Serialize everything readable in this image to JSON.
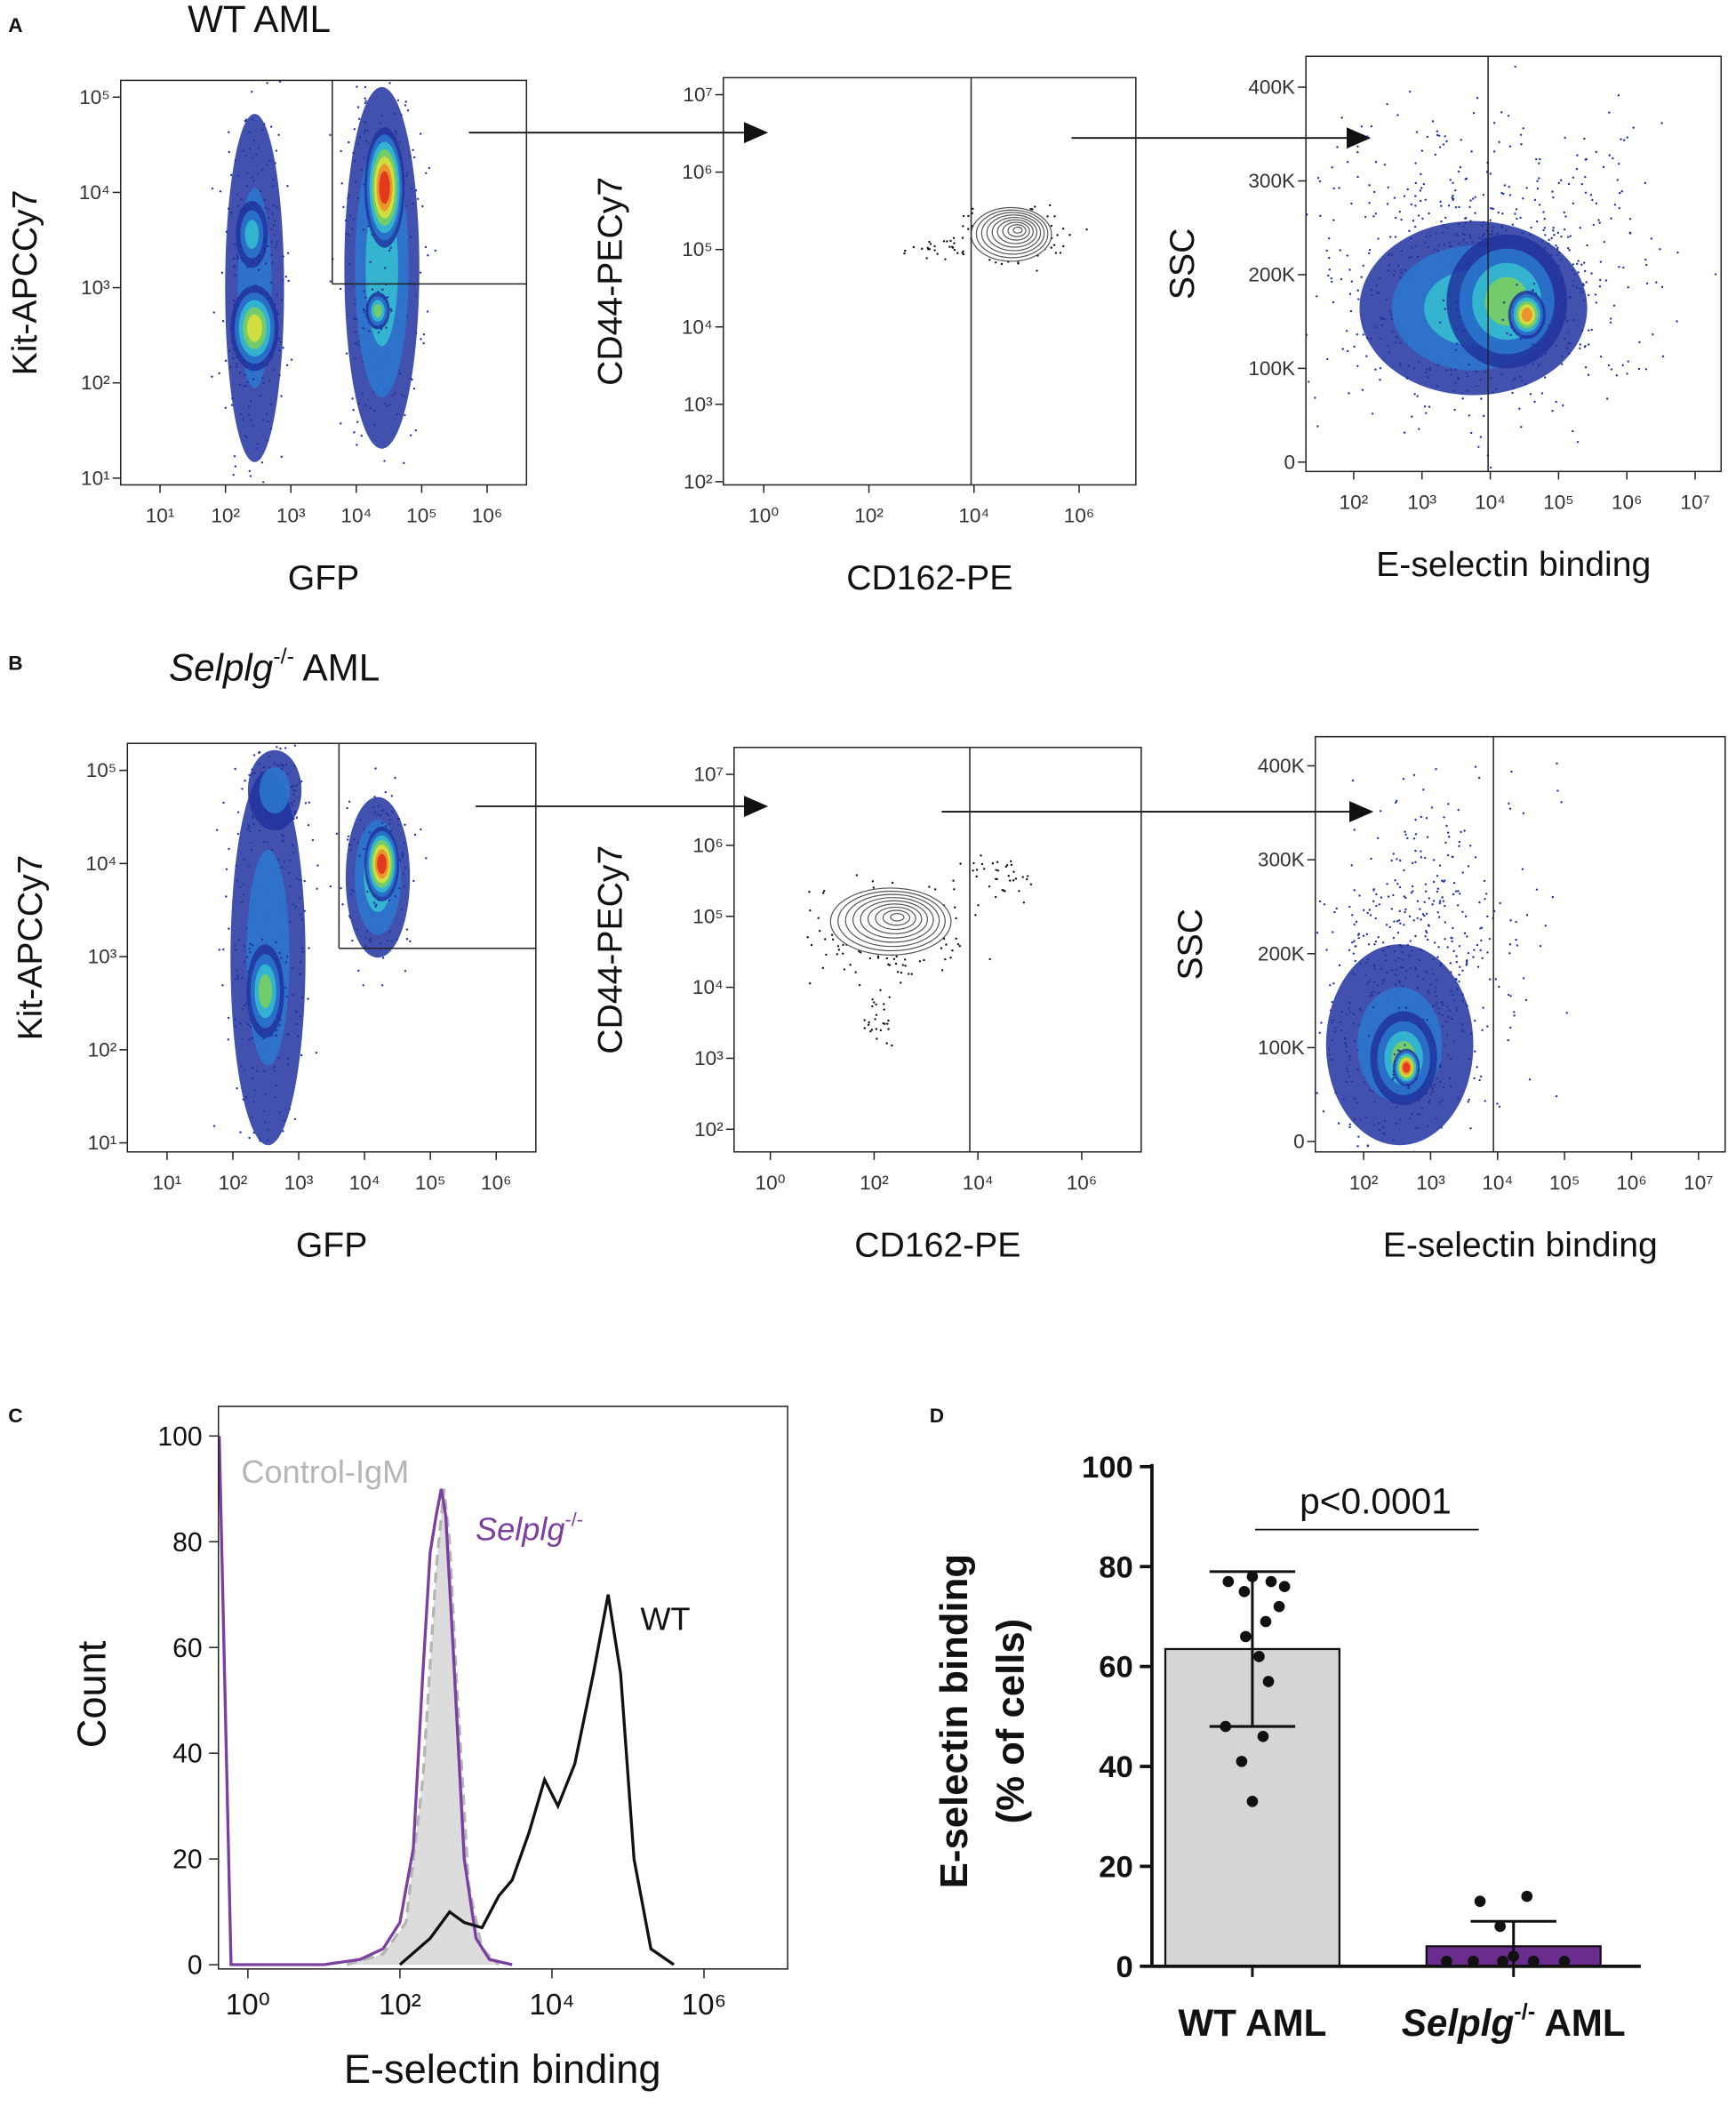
{
  "panels": [
    {
      "letter": "A",
      "title": "WT AML"
    },
    {
      "letter": "B",
      "title": {
        "italic": "Selplg",
        "sup": "-/-",
        "text": " AML"
      }
    },
    {
      "letter": "C"
    },
    {
      "letter": "D"
    }
  ],
  "chart_data": [
    {
      "type": "density",
      "xlabel": "GFP",
      "ylabel": "Kit-APCCy7",
      "xlog": true,
      "ylog": true,
      "xlim": [
        2.5,
        4000000
      ],
      "ylim": [
        8.5,
        150000
      ],
      "xticks": [
        {
          "value": 10,
          "label": "10¹"
        },
        {
          "value": 100,
          "label": "10²"
        },
        {
          "value": 1000,
          "label": "10³"
        },
        {
          "value": 10000,
          "label": "10⁴"
        },
        {
          "value": 100000,
          "label": "10⁵"
        },
        {
          "value": 1000000,
          "label": "10⁶"
        }
      ],
      "yticks": [
        {
          "value": 10,
          "label": "10¹"
        },
        {
          "value": 100,
          "label": "10²"
        },
        {
          "value": 1000,
          "label": "10³"
        },
        {
          "value": 10000,
          "label": "10⁴"
        },
        {
          "value": 100000,
          "label": "10⁵"
        }
      ]
    },
    {
      "type": "contour",
      "xlabel": "CD162-PE",
      "ylabel": "CD44-PECy7",
      "xlog": true,
      "ylog": true,
      "xlim": [
        0.17,
        12000000
      ],
      "ylim": [
        91,
        16600000
      ],
      "xticks": [
        {
          "value": 1,
          "label": "10⁰"
        },
        {
          "value": 100,
          "label": "10²"
        },
        {
          "value": 10000,
          "label": "10⁴"
        },
        {
          "value": 1000000,
          "label": "10⁶"
        }
      ],
      "yticks": [
        {
          "value": 100,
          "label": "10²"
        },
        {
          "value": 1000,
          "label": "10³"
        },
        {
          "value": 10000,
          "label": "10⁴"
        },
        {
          "value": 100000,
          "label": "10⁵"
        },
        {
          "value": 1000000,
          "label": "10⁶"
        },
        {
          "value": 10000000,
          "label": "10⁷"
        }
      ]
    },
    {
      "type": "density",
      "xlabel": "E-selectin binding",
      "ylabel": "SSC",
      "xlog": true,
      "ylog": false,
      "xlim": [
        20,
        24000000
      ],
      "ylim": [
        -10000,
        433000
      ],
      "xticks": [
        {
          "value": 100,
          "label": "10²"
        },
        {
          "value": 1000,
          "label": "10³"
        },
        {
          "value": 10000,
          "label": "10⁴"
        },
        {
          "value": 100000,
          "label": "10⁵"
        },
        {
          "value": 1000000,
          "label": "10⁶"
        },
        {
          "value": 10000000,
          "label": "10⁷"
        }
      ],
      "yticks": [
        0,
        {
          "value": 100000,
          "label": "100K"
        },
        {
          "value": 200000,
          "label": "200K"
        },
        {
          "value": 300000,
          "label": "300K"
        },
        {
          "value": 400000,
          "label": "400K"
        }
      ]
    },
    {
      "type": "density",
      "xlabel": "GFP",
      "ylabel": "Kit-APCCy7",
      "xlog": true,
      "ylog": true,
      "xlim": [
        2.5,
        4000000
      ],
      "ylim": [
        8,
        195000
      ],
      "xticks": [
        {
          "value": 10,
          "label": "10¹"
        },
        {
          "value": 100,
          "label": "10²"
        },
        {
          "value": 1000,
          "label": "10³"
        },
        {
          "value": 10000,
          "label": "10⁴"
        },
        {
          "value": 100000,
          "label": "10⁵"
        },
        {
          "value": 1000000,
          "label": "10⁶"
        }
      ],
      "yticks": [
        {
          "value": 10,
          "label": "10¹"
        },
        {
          "value": 100,
          "label": "10²"
        },
        {
          "value": 1000,
          "label": "10³"
        },
        {
          "value": 10000,
          "label": "10⁴"
        },
        {
          "value": 100000,
          "label": "10⁵"
        }
      ]
    },
    {
      "type": "contour",
      "xlabel": "CD162-PE",
      "ylabel": "CD44-PECy7",
      "xlog": true,
      "ylog": true,
      "xlim": [
        0.2,
        14000000
      ],
      "ylim": [
        48,
        24000000
      ],
      "xticks": [
        {
          "value": 1,
          "label": "10⁰"
        },
        {
          "value": 100,
          "label": "10²"
        },
        {
          "value": 10000,
          "label": "10⁴"
        },
        {
          "value": 1000000,
          "label": "10⁶"
        }
      ],
      "yticks": [
        {
          "value": 100,
          "label": "10²"
        },
        {
          "value": 1000,
          "label": "10³"
        },
        {
          "value": 10000,
          "label": "10⁴"
        },
        {
          "value": 100000,
          "label": "10⁵"
        },
        {
          "value": 1000000,
          "label": "10⁶"
        },
        {
          "value": 10000000,
          "label": "10⁷"
        }
      ]
    },
    {
      "type": "density",
      "xlabel": "E-selectin binding",
      "ylabel": "SSC",
      "xlog": true,
      "ylog": false,
      "xlim": [
        19,
        25000000
      ],
      "ylim": [
        -11000,
        431000
      ],
      "xticks": [
        {
          "value": 100,
          "label": "10²"
        },
        {
          "value": 1000,
          "label": "10³"
        },
        {
          "value": 10000,
          "label": "10⁴"
        },
        {
          "value": 100000,
          "label": "10⁵"
        },
        {
          "value": 1000000,
          "label": "10⁶"
        },
        {
          "value": 10000000,
          "label": "10⁷"
        }
      ],
      "yticks": [
        0,
        {
          "value": 100000,
          "label": "100K"
        },
        {
          "value": 200000,
          "label": "200K"
        },
        {
          "value": 300000,
          "label": "300K"
        },
        {
          "value": 400000,
          "label": "400K"
        }
      ]
    },
    {
      "type": "line",
      "xlabel": "E-selectin binding",
      "ylabel": "Count",
      "xlog": true,
      "xlim": [
        0.41,
        12600000
      ],
      "ylim": [
        -0.8,
        105.6
      ],
      "xticks": [
        {
          "value": 1,
          "label": "10⁰"
        },
        {
          "value": 100,
          "label": "10²"
        },
        {
          "value": 10000,
          "label": "10⁴"
        },
        {
          "value": 1000000,
          "label": "10⁶"
        }
      ],
      "yticks": [
        0,
        20,
        40,
        60,
        80,
        100
      ],
      "series": [
        {
          "name": "Control-IgM",
          "color": "#b5b5b5",
          "fill": "#dcdcdc",
          "dashed": true,
          "x": [
            20,
            60,
            120,
            200,
            300,
            380,
            450,
            550,
            800,
            1200,
            2000
          ],
          "values": [
            0,
            2,
            8,
            35,
            75,
            90,
            80,
            55,
            15,
            3,
            0
          ]
        },
        {
          "name": {
            "italic": "Selplg",
            "sup": "-/-"
          },
          "color": "#7b3fa0",
          "x": [
            0.42,
            0.6,
            10,
            30,
            60,
            100,
            150,
            200,
            250,
            300,
            350,
            400,
            500,
            700,
            1000,
            1500,
            3000
          ],
          "values": [
            100,
            0,
            0,
            1,
            3,
            8,
            22,
            55,
            78,
            85,
            90,
            85,
            60,
            20,
            5,
            1,
            0
          ]
        },
        {
          "name": "WT",
          "color": "#111111",
          "x": [
            100,
            250,
            450,
            700,
            1200,
            2000,
            3000,
            5000,
            8000,
            12000,
            20000,
            35000,
            55000,
            80000,
            120000,
            200000,
            400000
          ],
          "values": [
            0,
            5,
            10,
            8,
            7,
            13,
            16,
            25,
            35,
            30,
            38,
            55,
            70,
            55,
            20,
            3,
            0
          ]
        }
      ]
    },
    {
      "type": "bar",
      "ylabel": [
        "E-selectin binding",
        "(% of cells)"
      ],
      "categories": [
        "WT AML",
        {
          "italic": "Selplg",
          "sup": "-/-",
          "text": " AML"
        }
      ],
      "values": [
        63.5,
        4
      ],
      "errors": [
        15.5,
        5
      ],
      "colors": [
        "#d4d5d7",
        "#6a2c8e"
      ],
      "points": [
        [
          77,
          78,
          77,
          76,
          75,
          72,
          69,
          66,
          62,
          57,
          48,
          46,
          41,
          33
        ],
        [
          13,
          14,
          8,
          1,
          1,
          1,
          1,
          1,
          2
        ]
      ],
      "ylim": [
        0,
        100
      ],
      "yticks": [
        0,
        20,
        40,
        60,
        80,
        100
      ],
      "annotation": "p<0.0001"
    }
  ]
}
